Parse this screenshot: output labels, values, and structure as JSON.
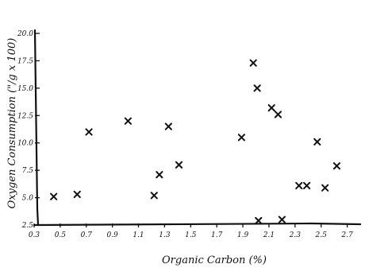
{
  "chart_data": {
    "type": "scatter",
    "xlabel": "Organic Carbon (%)",
    "ylabel": "Oxygen Consumption (\"/g x 100)",
    "marker": "x",
    "marker_color": "#111111",
    "xlim": [
      0.3,
      2.8
    ],
    "ylim": [
      2.5,
      20.0
    ],
    "x_ticks": [
      "0.3",
      "0.5",
      "0.7",
      "0.9",
      "1.1",
      "1.3",
      "1.5",
      "1.7",
      "1.9",
      "2.1",
      "2.3",
      "2.5",
      "2.7"
    ],
    "y_ticks": [
      "2.5",
      "5.0",
      "7.5",
      "10.0",
      "12.5",
      "15.0",
      "17.5",
      "20.0"
    ],
    "points": [
      {
        "x": 0.45,
        "y": 5.1
      },
      {
        "x": 0.63,
        "y": 5.3
      },
      {
        "x": 0.72,
        "y": 11.0
      },
      {
        "x": 1.02,
        "y": 12.0
      },
      {
        "x": 1.22,
        "y": 5.2
      },
      {
        "x": 1.26,
        "y": 7.1
      },
      {
        "x": 1.33,
        "y": 11.5
      },
      {
        "x": 1.41,
        "y": 8.0
      },
      {
        "x": 1.89,
        "y": 10.5
      },
      {
        "x": 1.98,
        "y": 17.3
      },
      {
        "x": 2.01,
        "y": 15.0
      },
      {
        "x": 2.02,
        "y": 2.9
      },
      {
        "x": 2.12,
        "y": 13.2
      },
      {
        "x": 2.17,
        "y": 12.6
      },
      {
        "x": 2.2,
        "y": 3.0
      },
      {
        "x": 2.33,
        "y": 6.1
      },
      {
        "x": 2.39,
        "y": 6.1
      },
      {
        "x": 2.47,
        "y": 10.1
      },
      {
        "x": 2.53,
        "y": 5.9
      },
      {
        "x": 2.62,
        "y": 7.9
      }
    ]
  }
}
